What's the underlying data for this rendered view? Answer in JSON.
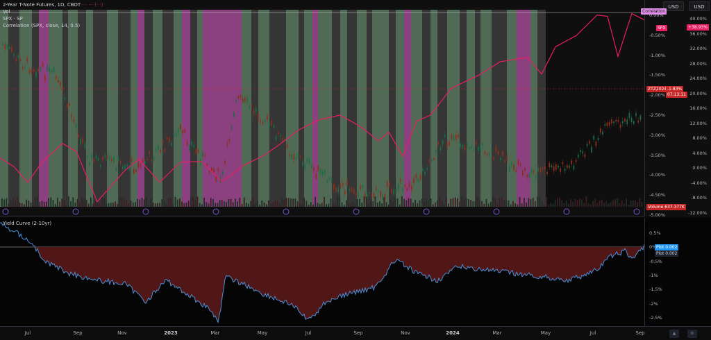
{
  "header": {
    "symbol_title": "2-Year T-Note Futures, 1D, CBOT",
    "title_red": "··· ··· (···)",
    "line2": "Vol",
    "line3": "SPX · SP",
    "line4": "Correlation (SPX, close, 14, 0.5)"
  },
  "lower_pane": {
    "title": "Yield Curve (2-10yr)"
  },
  "axis_buttons": [
    "USD",
    "USD"
  ],
  "price_axis_left": {
    "ticks": [
      "0.00%",
      "-0.50%",
      "-1.00%",
      "-1.50%",
      "-2.00%",
      "-2.50%",
      "-3.00%",
      "-3.50%",
      "-4.00%",
      "-4.50%",
      "-5.00%"
    ]
  },
  "price_axis_right": {
    "ticks": [
      "40.00%",
      "36.00%",
      "32.00%",
      "28.00%",
      "24.00%",
      "20.00%",
      "16.00%",
      "12.00%",
      "8.00%",
      "4.00%",
      "0.00%",
      "-4.00%",
      "-8.00%",
      "-12.00%"
    ]
  },
  "yield_axis": {
    "ticks": [
      "0.5%",
      "0%",
      "-0.5%",
      "-1%",
      "-1.5%",
      "-2%",
      "-2.5%"
    ]
  },
  "tags": {
    "correlation": "Correlation",
    "spx_pct": "+38.93%",
    "spx": "SPX",
    "zt_symbol": "ZTZ2024",
    "zt_pct": "-1.83%",
    "countdown": "07:13:11",
    "volume": "Volume",
    "volume_val": "637.377K",
    "plot1": "Plot",
    "plot1_val": "0.002",
    "plot2": "Plot",
    "plot2_val": "0.002"
  },
  "time_axis": {
    "labels": [
      "Jul",
      "Sep",
      "Nov",
      "2023",
      "Mar",
      "May",
      "Jul",
      "Sep",
      "Nov",
      "2024",
      "Mar",
      "May",
      "Jul",
      "Sep"
    ],
    "bold": [
      "2023",
      "2024"
    ]
  },
  "colors": {
    "background": "#0f0f0f",
    "band_green": "#5d7a62",
    "band_magenta": "#a14a93",
    "band_gray": "#3c3c3c",
    "spx_line": "#e91e63",
    "candle_up": "#1b6b47",
    "candle_down": "#8b2f1f",
    "yield_line": "#4a90d9",
    "yield_fill": "#5a1a1a",
    "tag_correlation": "#e18ee8",
    "tag_spx": "#e91e63",
    "tag_zt": "#c62828",
    "tag_plot": "#2196f3"
  }
}
